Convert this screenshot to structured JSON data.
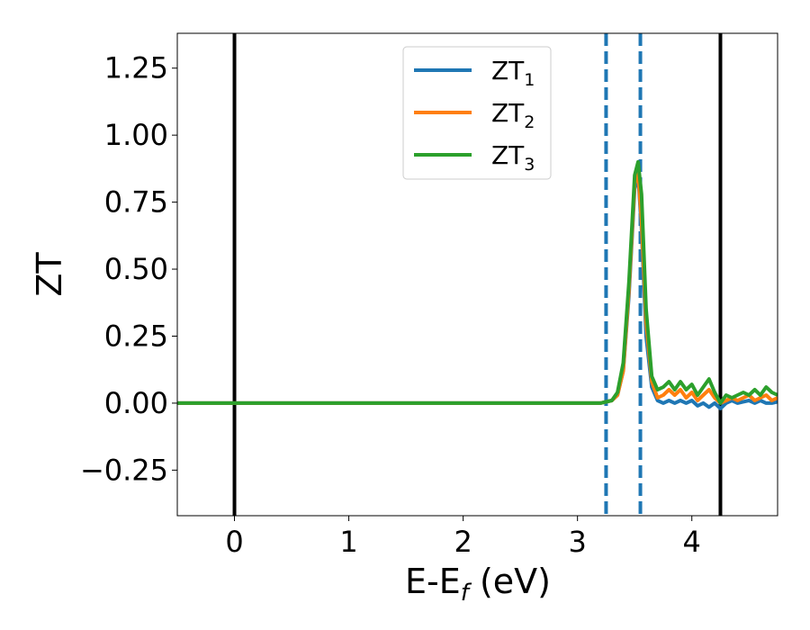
{
  "chart_data": {
    "type": "line",
    "xlabel_main": "E-E",
    "xlabel_sub": "f",
    "xlabel_unit": " (eV)",
    "ylabel": "ZT",
    "xlim": [
      -0.5,
      4.75
    ],
    "ylim": [
      -0.42,
      1.38
    ],
    "xticks": [
      0,
      1,
      2,
      3,
      4
    ],
    "xtick_labels": [
      "0",
      "1",
      "2",
      "3",
      "4"
    ],
    "yticks": [
      -0.25,
      0.0,
      0.25,
      0.5,
      0.75,
      1.0,
      1.25
    ],
    "ytick_labels": [
      "−0.25",
      "0.00",
      "0.25",
      "0.50",
      "0.75",
      "1.00",
      "1.25"
    ],
    "grid": false,
    "legend_position": "top-center",
    "vertical_lines": [
      {
        "x": 0.0,
        "style": "solid",
        "color": "#000000"
      },
      {
        "x": 4.25,
        "style": "solid",
        "color": "#000000"
      },
      {
        "x": 3.25,
        "style": "dashed",
        "color": "#1f77b4"
      },
      {
        "x": 3.55,
        "style": "dashed",
        "color": "#1f77b4"
      }
    ],
    "series": [
      {
        "name": "ZT",
        "sub": "1",
        "color": "#1f77b4",
        "x": [
          -0.5,
          3.2,
          3.3,
          3.35,
          3.4,
          3.45,
          3.5,
          3.53,
          3.56,
          3.6,
          3.65,
          3.7,
          3.75,
          3.8,
          3.85,
          3.9,
          3.95,
          4.0,
          4.05,
          4.1,
          4.15,
          4.2,
          4.25,
          4.3,
          4.35,
          4.4,
          4.45,
          4.5,
          4.55,
          4.6,
          4.65,
          4.7,
          4.75
        ],
        "y": [
          0.0,
          0.0,
          0.01,
          0.03,
          0.12,
          0.4,
          0.8,
          0.85,
          0.65,
          0.25,
          0.06,
          0.01,
          0.0,
          0.01,
          0.0,
          0.01,
          0.0,
          0.01,
          -0.01,
          0.0,
          -0.015,
          0.0,
          -0.02,
          0.0,
          0.01,
          0.0,
          0.005,
          0.01,
          0.0,
          0.01,
          0.0,
          0.0,
          0.005
        ]
      },
      {
        "name": "ZT",
        "sub": "2",
        "color": "#ff7f0e",
        "x": [
          -0.5,
          3.2,
          3.3,
          3.35,
          3.4,
          3.45,
          3.5,
          3.53,
          3.56,
          3.6,
          3.65,
          3.7,
          3.75,
          3.8,
          3.85,
          3.9,
          3.95,
          4.0,
          4.05,
          4.1,
          4.15,
          4.2,
          4.25,
          4.3,
          4.35,
          4.4,
          4.45,
          4.5,
          4.55,
          4.6,
          4.65,
          4.7,
          4.75
        ],
        "y": [
          0.0,
          0.0,
          0.01,
          0.03,
          0.12,
          0.42,
          0.82,
          0.86,
          0.68,
          0.3,
          0.08,
          0.02,
          0.03,
          0.05,
          0.03,
          0.05,
          0.02,
          0.04,
          0.01,
          0.03,
          0.05,
          0.02,
          0.0,
          0.01,
          0.02,
          0.01,
          0.02,
          0.03,
          0.01,
          0.02,
          0.03,
          0.01,
          0.02
        ]
      },
      {
        "name": "ZT",
        "sub": "3",
        "color": "#2ca02c",
        "x": [
          -0.5,
          3.2,
          3.3,
          3.35,
          3.4,
          3.45,
          3.5,
          3.53,
          3.56,
          3.6,
          3.65,
          3.7,
          3.75,
          3.8,
          3.85,
          3.9,
          3.95,
          4.0,
          4.05,
          4.1,
          4.15,
          4.2,
          4.25,
          4.3,
          4.35,
          4.4,
          4.45,
          4.5,
          4.55,
          4.6,
          4.65,
          4.7,
          4.75
        ],
        "y": [
          0.0,
          0.0,
          0.01,
          0.04,
          0.15,
          0.45,
          0.85,
          0.9,
          0.78,
          0.35,
          0.1,
          0.05,
          0.06,
          0.08,
          0.05,
          0.08,
          0.05,
          0.07,
          0.03,
          0.06,
          0.09,
          0.04,
          0.0,
          0.03,
          0.02,
          0.03,
          0.04,
          0.03,
          0.05,
          0.03,
          0.06,
          0.04,
          0.03
        ]
      }
    ]
  }
}
